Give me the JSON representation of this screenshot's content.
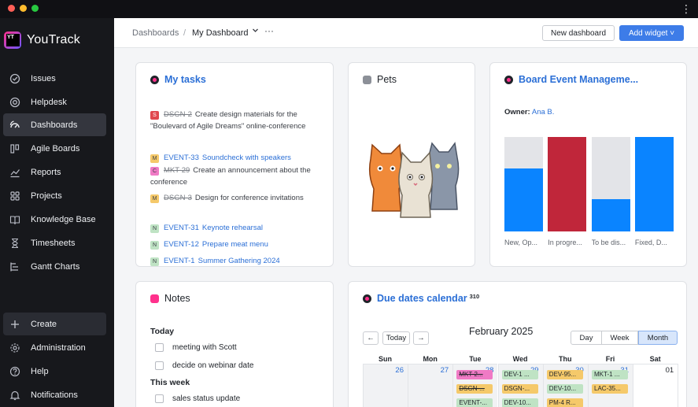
{
  "app": {
    "name": "YouTrack",
    "menu_glyph": "⋮"
  },
  "sidebar": {
    "items": [
      {
        "label": "Issues",
        "icon": "check-circle-icon"
      },
      {
        "label": "Helpdesk",
        "icon": "lifebuoy-icon"
      },
      {
        "label": "Dashboards",
        "icon": "dashboard-gauge-icon",
        "active": true
      },
      {
        "label": "Agile Boards",
        "icon": "board-icon"
      },
      {
        "label": "Reports",
        "icon": "chart-line-icon"
      },
      {
        "label": "Projects",
        "icon": "grid-icon"
      },
      {
        "label": "Knowledge Base",
        "icon": "book-icon"
      },
      {
        "label": "Timesheets",
        "icon": "hourglass-icon"
      },
      {
        "label": "Gantt Charts",
        "icon": "gantt-icon"
      }
    ],
    "bottom": [
      {
        "label": "Create",
        "icon": "plus-icon"
      },
      {
        "label": "Administration",
        "icon": "gear-icon"
      },
      {
        "label": "Help",
        "icon": "help-icon"
      },
      {
        "label": "Notifications",
        "icon": "bell-icon"
      }
    ]
  },
  "header": {
    "breadcrumb_root": "Dashboards",
    "breadcrumb_sep": "/",
    "current_dashboard": "My Dashboard",
    "more": "···",
    "new_dashboard_label": "New dashboard",
    "add_widget_label": "Add widget ˅"
  },
  "my_tasks": {
    "title": "My tasks",
    "items": [
      {
        "badge": "S",
        "badge_color": "#e0484f",
        "id": "DSGN-2",
        "done": true,
        "title": "Create design materials for the \"Boulevard of Agile Dreams\" online-conference"
      },
      {
        "badge": "M",
        "badge_color": "#f5c96a",
        "id": "EVENT-33",
        "done": false,
        "title": "Soundcheck with speakers"
      },
      {
        "badge": "C",
        "badge_color": "#f07ac5",
        "id": "MKT-29",
        "done": true,
        "title": "Create an announcement about the conference"
      },
      {
        "badge": "M",
        "badge_color": "#f5c96a",
        "id": "DSGN-3",
        "done": true,
        "title": "Design for conference invitations"
      },
      {
        "badge": "N",
        "badge_color": "#bfe3c4",
        "id": "EVENT-31",
        "done": false,
        "title": "Keynote rehearsal"
      },
      {
        "badge": "N",
        "badge_color": "#bfe3c4",
        "id": "EVENT-12",
        "done": false,
        "title": "Prepare meat menu"
      },
      {
        "badge": "N",
        "badge_color": "#bfe3c4",
        "id": "EVENT-1",
        "done": false,
        "title": "Summer Gathering 2024"
      }
    ]
  },
  "pets": {
    "title": "Pets"
  },
  "board": {
    "title": "Board Event Manageme...",
    "owner_label": "Owner:",
    "owner_name": "Ana B.",
    "chart_data": {
      "type": "bar",
      "categories": [
        "New, Op...",
        "In progre...",
        "To be dis...",
        "Fixed, D..."
      ],
      "colors": [
        "#0a84ff",
        "#c0263a",
        "#0a84ff",
        "#0a84ff"
      ],
      "fill_fraction": [
        0.67,
        1.0,
        0.34,
        1.0
      ]
    }
  },
  "notes": {
    "title": "Notes",
    "sections": [
      {
        "heading": "Today",
        "items": [
          "meeting with Scott",
          "decide on webinar date"
        ]
      },
      {
        "heading": "This week",
        "items": [
          "sales status update"
        ]
      }
    ]
  },
  "calendar": {
    "title": "Due dates calendar",
    "count": "310",
    "prev": "←",
    "today": "Today",
    "next": "→",
    "month": "February 2025",
    "views": [
      "Day",
      "Week",
      "Month"
    ],
    "active_view": "Month",
    "weekdays": [
      "Sun",
      "Mon",
      "Tue",
      "Wed",
      "Thu",
      "Fri",
      "Sat"
    ],
    "days": [
      "26",
      "27",
      "28",
      "29",
      "30",
      "31",
      "01"
    ],
    "events": [
      [],
      [],
      [
        {
          "label": "MKT-2...",
          "color": "#f07ac5",
          "done": true
        },
        {
          "label": "DSGN-...",
          "color": "#f5c96a",
          "done": true
        },
        {
          "label": "EVENT-...",
          "color": "#bfe3c4",
          "done": false
        }
      ],
      [
        {
          "label": "DEV-1 ...",
          "color": "#bfe3c4",
          "done": false
        },
        {
          "label": "DSGN-...",
          "color": "#f5c96a",
          "done": false
        },
        {
          "label": "DEV-10...",
          "color": "#bfe3c4",
          "done": false
        }
      ],
      [
        {
          "label": "DEV-95...",
          "color": "#f5c96a",
          "done": false
        },
        {
          "label": "DEV-10...",
          "color": "#bfe3c4",
          "done": false
        },
        {
          "label": "PM-4 R...",
          "color": "#f5c96a",
          "done": false
        }
      ],
      [
        {
          "label": "MKT-1 ...",
          "color": "#bfe3c4",
          "done": false
        },
        {
          "label": "LAC-35...",
          "color": "#f5c96a",
          "done": false
        }
      ],
      []
    ]
  }
}
